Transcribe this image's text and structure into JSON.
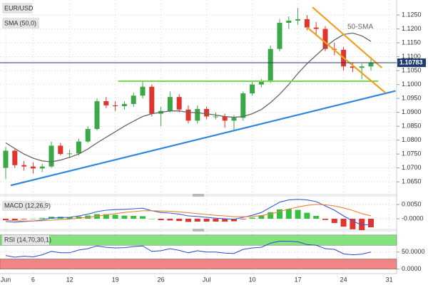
{
  "chart_data": [
    {
      "type": "candlestick",
      "title": "EUR/USD",
      "categories": [
        "Jun",
        null,
        null,
        "6",
        null,
        null,
        null,
        "12",
        null,
        null,
        null,
        null,
        "19",
        null,
        null,
        null,
        null,
        "26",
        null,
        null,
        null,
        null,
        "Jul",
        null,
        null,
        null,
        null,
        "10",
        null,
        null,
        null,
        null,
        "17",
        null,
        null,
        null,
        null,
        "24",
        null,
        null,
        null,
        null,
        "31"
      ],
      "open": [
        1.07,
        1.0762,
        1.071,
        1.0705,
        1.0698,
        1.0705,
        1.078,
        1.075,
        1.0752,
        1.0795,
        1.084,
        1.094,
        1.0925,
        1.0922,
        1.093,
        1.096,
        1.0992,
        1.0895,
        1.0905,
        1.0955,
        1.091,
        1.087,
        1.0912,
        1.0885,
        1.0885,
        1.087,
        1.088,
        1.0968,
        1.1,
        1.101,
        1.1128,
        1.1222,
        1.123,
        1.1235,
        1.1205,
        1.12,
        1.1128,
        1.1125,
        1.1065,
        1.106,
        1.1065,
        null,
        null
      ],
      "high": [
        1.0775,
        1.077,
        1.0725,
        1.072,
        1.0715,
        1.0795,
        1.079,
        1.0765,
        1.0805,
        1.085,
        1.095,
        1.0955,
        1.094,
        1.094,
        1.097,
        1.101,
        1.1,
        1.092,
        1.0975,
        1.0965,
        1.0925,
        1.0925,
        1.092,
        1.09,
        1.0895,
        1.089,
        1.0975,
        1.101,
        1.102,
        1.114,
        1.1235,
        1.1245,
        1.1275,
        1.125,
        1.1225,
        1.121,
        1.115,
        1.1135,
        1.108,
        1.1075,
        1.11,
        null,
        null
      ],
      "low": [
        1.066,
        1.07,
        1.069,
        1.068,
        1.0685,
        1.07,
        1.0745,
        1.0735,
        1.0745,
        1.079,
        1.0835,
        1.0915,
        1.0905,
        1.091,
        1.092,
        1.095,
        1.0885,
        1.085,
        1.09,
        1.09,
        1.086,
        1.086,
        1.0875,
        1.0875,
        1.0845,
        1.0835,
        1.087,
        1.096,
        1.099,
        1.1005,
        1.112,
        1.12,
        1.1215,
        1.1195,
        1.118,
        1.112,
        1.1105,
        1.105,
        1.1045,
        1.102,
        1.105,
        null,
        null
      ],
      "close": [
        1.0762,
        1.071,
        1.0705,
        1.0698,
        1.0705,
        1.078,
        1.075,
        1.0752,
        1.0795,
        1.084,
        1.094,
        1.0925,
        1.0922,
        1.093,
        1.096,
        1.0992,
        1.0895,
        1.0905,
        1.0955,
        1.091,
        1.087,
        1.0912,
        1.0885,
        1.0885,
        1.087,
        1.088,
        1.0968,
        1.1,
        1.101,
        1.1128,
        1.1222,
        1.123,
        1.1235,
        1.1205,
        1.12,
        1.1128,
        1.1125,
        1.1065,
        1.106,
        1.1065,
        1.1078,
        null,
        null
      ],
      "up_color": "#3aa845",
      "down_color": "#e0342f",
      "series": [
        {
          "name": "SMA (50,0)",
          "color": "#666666",
          "values": [
            1.079,
            1.077,
            1.075,
            1.0735,
            1.0725,
            1.0722,
            1.0728,
            1.0738,
            1.075,
            1.0768,
            1.079,
            1.081,
            1.083,
            1.085,
            1.0868,
            1.0885,
            1.0895,
            1.09,
            1.0905,
            1.0905,
            1.09,
            1.0898,
            1.0895,
            1.089,
            1.0885,
            1.0882,
            1.0885,
            1.0895,
            1.091,
            1.0935,
            1.0965,
            1.1,
            1.104,
            1.1075,
            1.1105,
            1.1135,
            1.116,
            1.118,
            1.1185,
            1.1175,
            1.1155,
            null,
            null
          ]
        }
      ],
      "annotation": "50-SMA",
      "last_price": 1.10783,
      "last_price_color": "#1f3a6e",
      "trendlines": [
        {
          "color": "#2e86de",
          "x": [
            0.55,
            42.7
          ],
          "y": [
            1.0637,
            1.0977
          ]
        },
        {
          "color": "#7ed957",
          "x": [
            12.3,
            40.8
          ],
          "y": [
            1.1012,
            1.1012
          ]
        },
        {
          "color": "#f0a020",
          "x": [
            33.6,
            41.2
          ],
          "y": [
            1.1278,
            1.106
          ]
        },
        {
          "color": "#f0a020",
          "x": [
            33.0,
            41.6
          ],
          "y": [
            1.1206,
            1.097
          ]
        }
      ],
      "ylim": [
        1.0612,
        1.1304
      ],
      "yticks": [
        {
          "value": 1.125,
          "label": "1.1250"
        },
        {
          "value": 1.12,
          "label": "1.1200"
        },
        {
          "value": 1.115,
          "label": "1.1150"
        },
        {
          "value": 1.11,
          "label": "1.1100"
        },
        {
          "value": 1.105,
          "label": "1.1050"
        },
        {
          "value": 1.1,
          "label": "1.1000"
        },
        {
          "value": 1.095,
          "label": "1.0950"
        },
        {
          "value": 1.09,
          "label": "1.0900"
        },
        {
          "value": 1.085,
          "label": "1.0850"
        },
        {
          "value": 1.08,
          "label": "1.0800"
        },
        {
          "value": 1.075,
          "label": "1.0750"
        },
        {
          "value": 1.07,
          "label": "1.0700"
        },
        {
          "value": 1.065,
          "label": "1.0650"
        }
      ],
      "grid": true
    },
    {
      "type": "macd",
      "title": "MACD (12,26,9)",
      "histogram": {
        "up_color": "#35c040",
        "down_color": "#e0342f",
        "values": [
          -0.0005,
          -0.0005,
          -0.0002,
          0.0,
          0.0003,
          0.0007,
          0.0007,
          0.0006,
          0.0008,
          0.0011,
          0.0016,
          0.0016,
          0.0014,
          0.0011,
          0.001,
          0.0009,
          0.0,
          -0.0005,
          -0.0006,
          -0.0008,
          -0.0011,
          -0.001,
          -0.001,
          -0.001,
          -0.001,
          -0.0009,
          -0.0002,
          0.0004,
          0.0011,
          0.0023,
          0.0033,
          0.0034,
          0.0031,
          0.0021,
          0.001,
          -0.0004,
          -0.0015,
          -0.0028,
          -0.0037,
          -0.004,
          -0.003
        ]
      },
      "series": [
        {
          "color": "#3c5bd6",
          "values": [
            -0.001,
            -0.0012,
            -0.001,
            -0.0008,
            -0.0004,
            0.0002,
            0.0004,
            0.0005,
            0.001,
            0.0016,
            0.0025,
            0.003,
            0.0032,
            0.0033,
            0.0035,
            0.0037,
            0.0028,
            0.0022,
            0.002,
            0.0016,
            0.001,
            0.0008,
            0.0005,
            0.0002,
            0.0,
            -0.0002,
            0.0005,
            0.0012,
            0.0022,
            0.004,
            0.0058,
            0.0066,
            0.0068,
            0.0066,
            0.006,
            0.0045,
            0.003,
            0.001,
            -0.0008,
            -0.0022,
            -0.002
          ]
        },
        {
          "color": "#e8833a",
          "values": [
            -0.0005,
            -0.0007,
            -0.0008,
            -0.0008,
            -0.0007,
            -0.0005,
            -0.0003,
            -0.0001,
            0.0002,
            0.0005,
            0.0009,
            0.0014,
            0.0018,
            0.0022,
            0.0025,
            0.0028,
            0.0028,
            0.0027,
            0.0026,
            0.0024,
            0.0021,
            0.0018,
            0.0015,
            0.0012,
            0.001,
            0.0007,
            0.0007,
            0.0008,
            0.0011,
            0.0017,
            0.0025,
            0.0034,
            0.0041,
            0.0047,
            0.005,
            0.0049,
            0.0045,
            0.0038,
            0.0029,
            0.0018,
            0.001
          ]
        }
      ],
      "ylim": [
        -0.0035,
        0.007
      ],
      "yticks": [
        {
          "value": 0.005,
          "label": "0.0050"
        },
        {
          "value": 0,
          "label": "-0.0000"
        }
      ],
      "grid": true
    },
    {
      "type": "line",
      "title": "RSI (14,70,30,1)",
      "bands": [
        {
          "from": 70,
          "to": 100,
          "color": "#86e27f"
        },
        {
          "from": 0,
          "to": 30,
          "color": "#f08585"
        }
      ],
      "series": [
        {
          "color": "#3045c8",
          "values": [
            40,
            35,
            38,
            36,
            42,
            52,
            48,
            48,
            56,
            60,
            68,
            64,
            62,
            63,
            66,
            68,
            52,
            54,
            60,
            55,
            48,
            54,
            50,
            50,
            47,
            46,
            58,
            62,
            64,
            76,
            82,
            82,
            80,
            72,
            70,
            60,
            58,
            45,
            42,
            44,
            50
          ]
        }
      ],
      "ylim": [
        -13,
        108
      ],
      "yticks": [
        {
          "value": 50,
          "label": "50.0000"
        },
        {
          "value": 0,
          "label": "0.0000"
        }
      ],
      "grid": true
    }
  ]
}
